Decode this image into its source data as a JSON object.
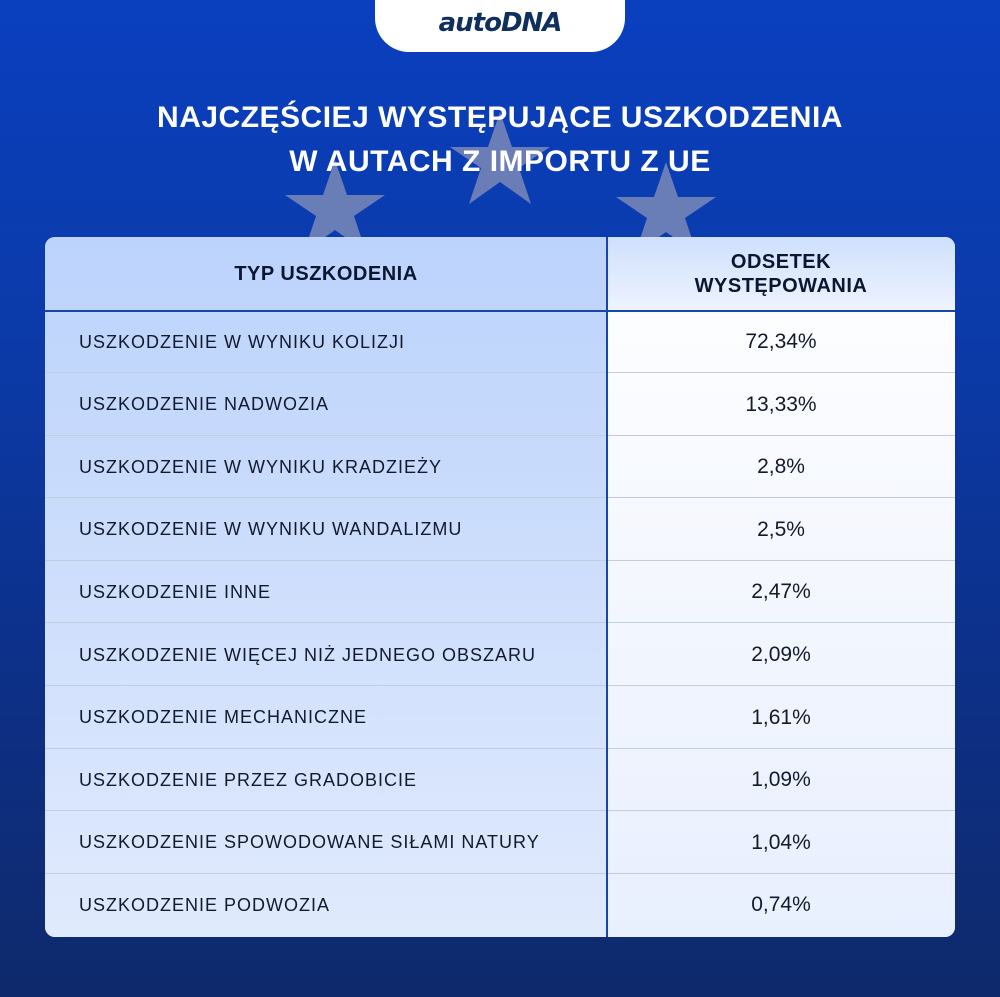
{
  "logo": "autoDNA",
  "title_line1": "NAJCZĘŚCIEJ WYSTĘPUJĄCE USZKODZENIA",
  "title_line2": "W AUTACH Z IMPORTU Z UE",
  "colors": {
    "background_top": "#0a3fbe",
    "background_bottom": "#0e2a6c",
    "table_divider": "#1a46a8",
    "text": "#121a2c"
  },
  "chart_data": {
    "type": "table",
    "columns": [
      "TYP USZKODENIA",
      "ODSETEK WYSTĘPOWANIA"
    ],
    "rows": [
      {
        "type": "USZKODZENIE W WYNIKU KOLIZJI",
        "share": "72,34%"
      },
      {
        "type": "USZKODZENIE NADWOZIA",
        "share": "13,33%"
      },
      {
        "type": "USZKODZENIE W WYNIKU KRADZIEŻY",
        "share": "2,8%"
      },
      {
        "type": "USZKODZENIE W WYNIKU WANDALIZMU",
        "share": "2,5%"
      },
      {
        "type": "USZKODZENIE INNE",
        "share": "2,47%"
      },
      {
        "type": "USZKODZENIE WIĘCEJ NIŻ JEDNEGO OBSZARU",
        "share": "2,09%"
      },
      {
        "type": "USZKODZENIE MECHANICZNE",
        "share": "1,61%"
      },
      {
        "type": "USZKODZENIE PRZEZ GRADOBICIE",
        "share": "1,09%"
      },
      {
        "type": "USZKODZENIE SPOWODOWANE SIŁAMI NATURY",
        "share": "1,04%"
      },
      {
        "type": "USZKODZENIE PODWOZIA",
        "share": "0,74%"
      }
    ]
  }
}
